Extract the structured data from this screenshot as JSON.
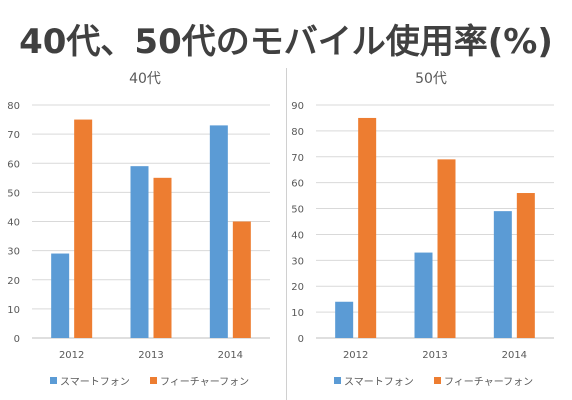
{
  "page": {
    "title": "40代、50代のモバイル使用率(%)"
  },
  "colors": {
    "smartphone": "#5b9bd5",
    "featurephone": "#ed7d31",
    "grid": "#d9d9d9",
    "axis": "#bfbfbf",
    "text": "#595959"
  },
  "chart_data": [
    {
      "type": "bar",
      "title": "40代",
      "categories": [
        "2012",
        "2013",
        "2014"
      ],
      "series": [
        {
          "name": "スマートフォン",
          "values": [
            29,
            59,
            73
          ]
        },
        {
          "name": "フィーチャーフォン",
          "values": [
            75,
            55,
            40
          ]
        }
      ],
      "ylim": [
        0,
        80
      ],
      "yticks": [
        0,
        10,
        20,
        30,
        40,
        50,
        60,
        70,
        80
      ],
      "grid": true,
      "legend": "bottom"
    },
    {
      "type": "bar",
      "title": "50代",
      "categories": [
        "2012",
        "2013",
        "2014"
      ],
      "series": [
        {
          "name": "スマートフォン",
          "values": [
            14,
            33,
            49
          ]
        },
        {
          "name": "フィーチャーフォン",
          "values": [
            85,
            69,
            56
          ]
        }
      ],
      "ylim": [
        0,
        90
      ],
      "yticks": [
        0,
        10,
        20,
        30,
        40,
        50,
        60,
        70,
        80,
        90
      ],
      "grid": true,
      "legend": "bottom"
    }
  ]
}
